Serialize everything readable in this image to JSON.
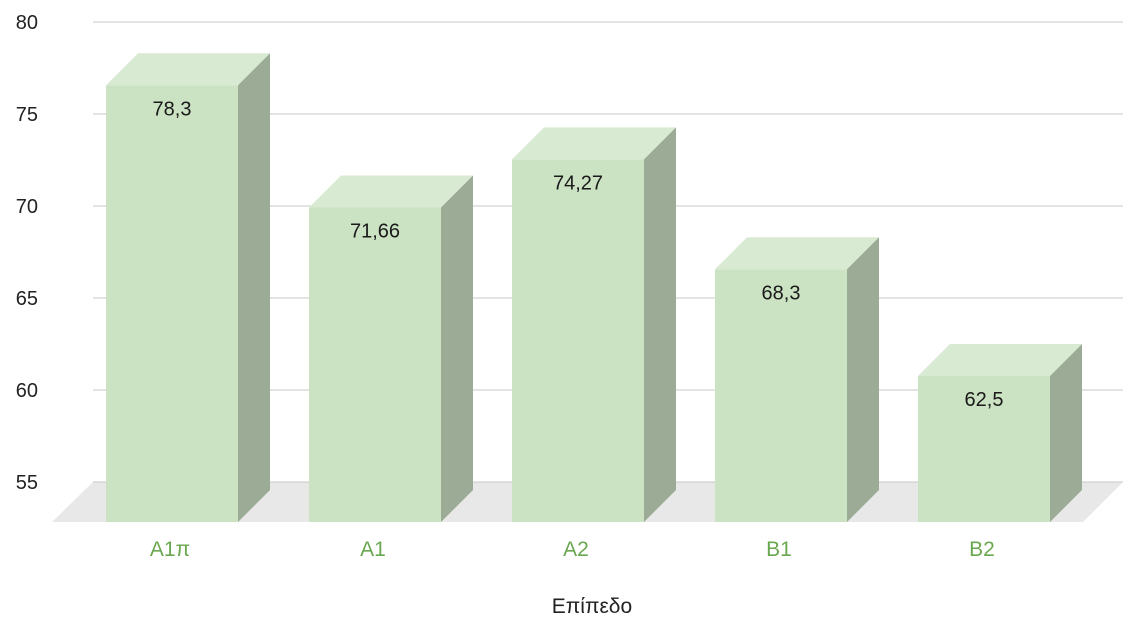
{
  "colors": {
    "bar_front": "#cbe2c3",
    "bar_top": "#d9ead3",
    "bar_side": "#9bab95",
    "grid": "#c8c8c8",
    "floor": "#e8e8e8",
    "category_text": "#6aa84f"
  },
  "chart_data": {
    "type": "bar",
    "style": "3d",
    "categories": [
      "A1π",
      "A1",
      "A2",
      "B1",
      "B2"
    ],
    "values": [
      78.3,
      71.66,
      74.27,
      68.3,
      62.5
    ],
    "value_labels": [
      "78,3",
      "71,66",
      "74,27",
      "68,3",
      "62,5"
    ],
    "xlabel": "Επίπεδο",
    "ylabel": "",
    "ylim": [
      55,
      80
    ],
    "yticks": [
      "55",
      "60",
      "65",
      "70",
      "75",
      "80"
    ],
    "grid": true
  }
}
